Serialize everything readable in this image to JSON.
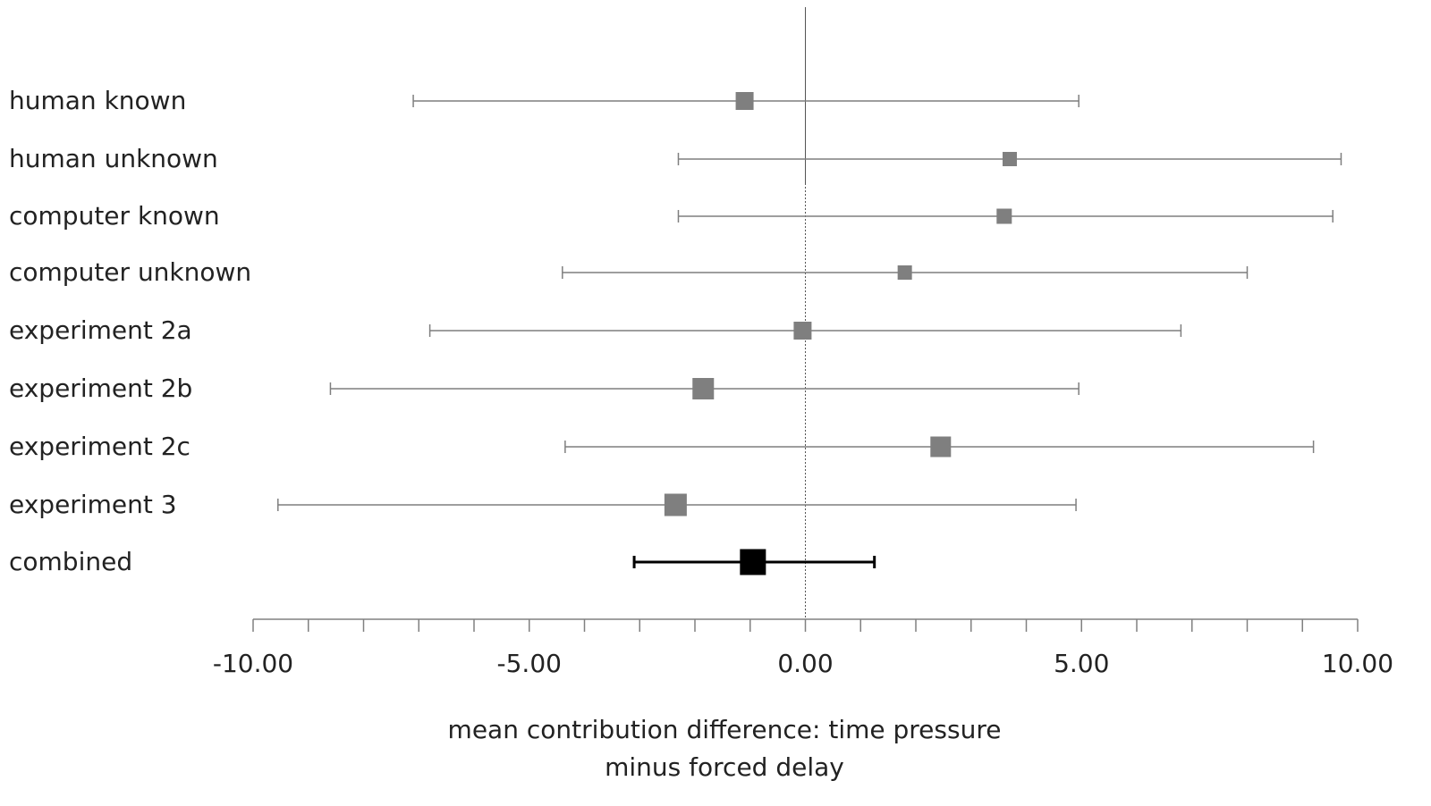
{
  "chart_data": {
    "type": "forest",
    "xlabel_lines": [
      "mean contribution difference: time pressure",
      "minus forced delay"
    ],
    "xlim": [
      -10,
      10
    ],
    "x_ticks": [
      -10,
      -5,
      0,
      5,
      10
    ],
    "x_tick_labels": [
      "-10.00",
      "-5.00",
      "0.00",
      "5.00",
      "10.00"
    ],
    "minor_tick_step": 1,
    "reference_line_x": 0,
    "colors": {
      "study": "#7f7f7f",
      "combined": "#000000",
      "axis": "#808080"
    },
    "rows": [
      {
        "label": "human known",
        "estimate": -1.1,
        "lower": -7.1,
        "upper": 4.95,
        "weight": 1.0,
        "combined": false
      },
      {
        "label": "human unknown",
        "estimate": 3.7,
        "lower": -2.3,
        "upper": 9.7,
        "weight": 0.8,
        "combined": false
      },
      {
        "label": "computer known",
        "estimate": 3.6,
        "lower": -2.3,
        "upper": 9.55,
        "weight": 0.85,
        "combined": false
      },
      {
        "label": "computer unknown",
        "estimate": 1.8,
        "lower": -4.4,
        "upper": 8.0,
        "weight": 0.8,
        "combined": false
      },
      {
        "label": "experiment 2a",
        "estimate": -0.05,
        "lower": -6.8,
        "upper": 6.8,
        "weight": 1.0,
        "combined": false
      },
      {
        "label": "experiment 2b",
        "estimate": -1.85,
        "lower": -8.6,
        "upper": 4.95,
        "weight": 1.2,
        "combined": false
      },
      {
        "label": "experiment 2c",
        "estimate": 2.45,
        "lower": -4.35,
        "upper": 9.2,
        "weight": 1.15,
        "combined": false
      },
      {
        "label": "experiment 3",
        "estimate": -2.35,
        "lower": -9.55,
        "upper": 4.9,
        "weight": 1.25,
        "combined": false
      },
      {
        "label": "combined",
        "estimate": -0.95,
        "lower": -3.1,
        "upper": 1.25,
        "weight": 1.15,
        "combined": true
      }
    ]
  }
}
